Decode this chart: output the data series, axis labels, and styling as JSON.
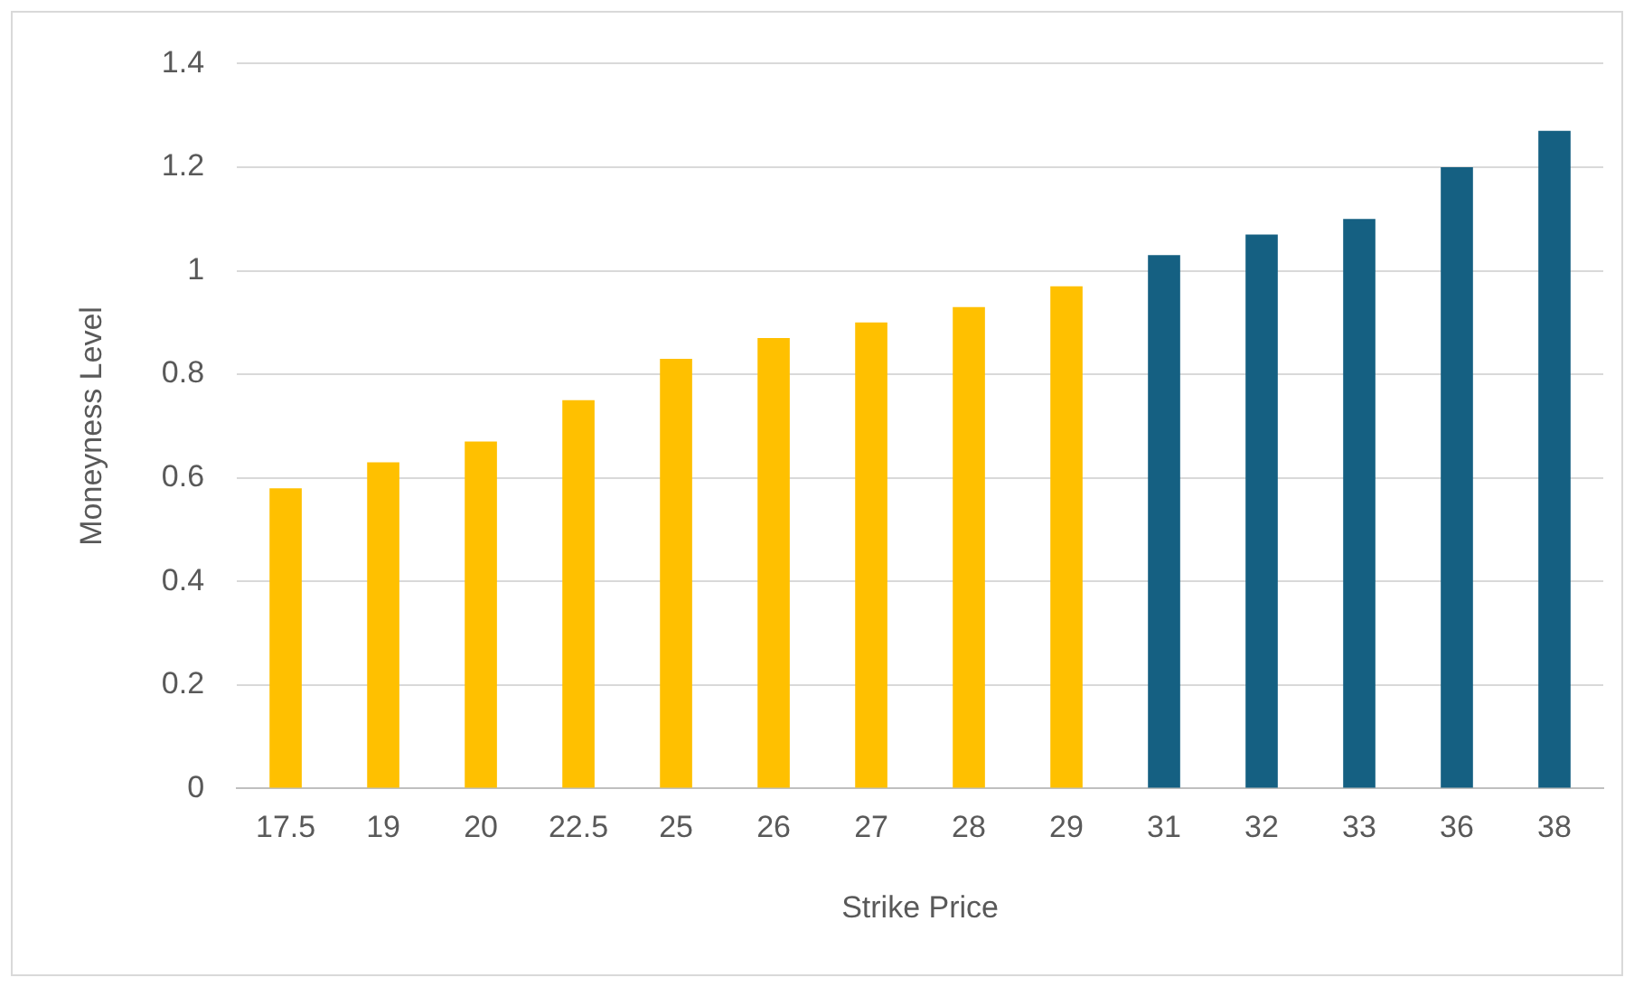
{
  "chart_data": {
    "type": "bar",
    "xlabel": "Strike Price",
    "ylabel": "Moneyness Level",
    "categories": [
      "17.5",
      "19",
      "20",
      "22.5",
      "25",
      "26",
      "27",
      "28",
      "29",
      "31",
      "32",
      "33",
      "36",
      "38"
    ],
    "values": [
      0.58,
      0.63,
      0.67,
      0.75,
      0.83,
      0.87,
      0.9,
      0.93,
      0.97,
      1.03,
      1.07,
      1.1,
      1.2,
      1.27
    ],
    "colors": [
      "#ffc000",
      "#ffc000",
      "#ffc000",
      "#ffc000",
      "#ffc000",
      "#ffc000",
      "#ffc000",
      "#ffc000",
      "#ffc000",
      "#156082",
      "#156082",
      "#156082",
      "#156082",
      "#156082"
    ],
    "ylim": [
      0,
      1.4
    ],
    "yticks": [
      0,
      0.2,
      0.4,
      0.6,
      0.8,
      1,
      1.2,
      1.4
    ],
    "grid": "y",
    "legend": false
  }
}
